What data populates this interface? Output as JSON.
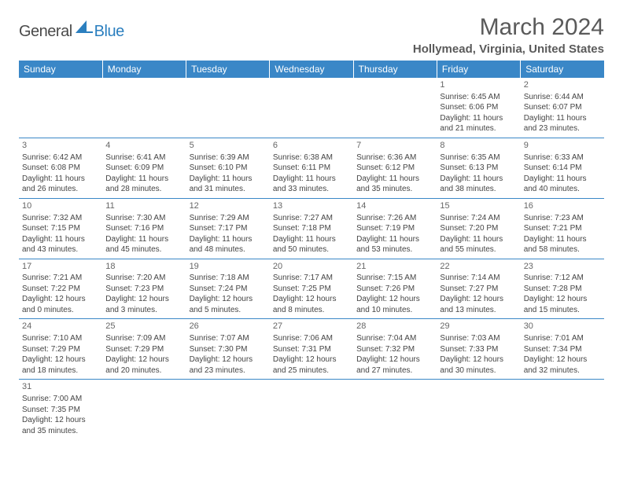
{
  "logo": {
    "text1": "General",
    "text2": "Blue"
  },
  "title": "March 2024",
  "location": "Hollymead, Virginia, United States",
  "colors": {
    "header_bg": "#3a87c7",
    "header_text": "#ffffff",
    "divider": "#3a87c7",
    "body_text": "#444444",
    "title_text": "#5a5a5a",
    "logo_blue": "#2b7fbf",
    "logo_gray": "#4a4a4a"
  },
  "fonts": {
    "title_size": 30,
    "location_size": 15,
    "th_size": 12,
    "cell_size": 10,
    "daynum_size": 11
  },
  "weekdays": [
    "Sunday",
    "Monday",
    "Tuesday",
    "Wednesday",
    "Thursday",
    "Friday",
    "Saturday"
  ],
  "weeks": [
    [
      null,
      null,
      null,
      null,
      null,
      {
        "d": "1",
        "sr": "Sunrise: 6:45 AM",
        "ss": "Sunset: 6:06 PM",
        "dl1": "Daylight: 11 hours",
        "dl2": "and 21 minutes."
      },
      {
        "d": "2",
        "sr": "Sunrise: 6:44 AM",
        "ss": "Sunset: 6:07 PM",
        "dl1": "Daylight: 11 hours",
        "dl2": "and 23 minutes."
      }
    ],
    [
      {
        "d": "3",
        "sr": "Sunrise: 6:42 AM",
        "ss": "Sunset: 6:08 PM",
        "dl1": "Daylight: 11 hours",
        "dl2": "and 26 minutes."
      },
      {
        "d": "4",
        "sr": "Sunrise: 6:41 AM",
        "ss": "Sunset: 6:09 PM",
        "dl1": "Daylight: 11 hours",
        "dl2": "and 28 minutes."
      },
      {
        "d": "5",
        "sr": "Sunrise: 6:39 AM",
        "ss": "Sunset: 6:10 PM",
        "dl1": "Daylight: 11 hours",
        "dl2": "and 31 minutes."
      },
      {
        "d": "6",
        "sr": "Sunrise: 6:38 AM",
        "ss": "Sunset: 6:11 PM",
        "dl1": "Daylight: 11 hours",
        "dl2": "and 33 minutes."
      },
      {
        "d": "7",
        "sr": "Sunrise: 6:36 AM",
        "ss": "Sunset: 6:12 PM",
        "dl1": "Daylight: 11 hours",
        "dl2": "and 35 minutes."
      },
      {
        "d": "8",
        "sr": "Sunrise: 6:35 AM",
        "ss": "Sunset: 6:13 PM",
        "dl1": "Daylight: 11 hours",
        "dl2": "and 38 minutes."
      },
      {
        "d": "9",
        "sr": "Sunrise: 6:33 AM",
        "ss": "Sunset: 6:14 PM",
        "dl1": "Daylight: 11 hours",
        "dl2": "and 40 minutes."
      }
    ],
    [
      {
        "d": "10",
        "sr": "Sunrise: 7:32 AM",
        "ss": "Sunset: 7:15 PM",
        "dl1": "Daylight: 11 hours",
        "dl2": "and 43 minutes."
      },
      {
        "d": "11",
        "sr": "Sunrise: 7:30 AM",
        "ss": "Sunset: 7:16 PM",
        "dl1": "Daylight: 11 hours",
        "dl2": "and 45 minutes."
      },
      {
        "d": "12",
        "sr": "Sunrise: 7:29 AM",
        "ss": "Sunset: 7:17 PM",
        "dl1": "Daylight: 11 hours",
        "dl2": "and 48 minutes."
      },
      {
        "d": "13",
        "sr": "Sunrise: 7:27 AM",
        "ss": "Sunset: 7:18 PM",
        "dl1": "Daylight: 11 hours",
        "dl2": "and 50 minutes."
      },
      {
        "d": "14",
        "sr": "Sunrise: 7:26 AM",
        "ss": "Sunset: 7:19 PM",
        "dl1": "Daylight: 11 hours",
        "dl2": "and 53 minutes."
      },
      {
        "d": "15",
        "sr": "Sunrise: 7:24 AM",
        "ss": "Sunset: 7:20 PM",
        "dl1": "Daylight: 11 hours",
        "dl2": "and 55 minutes."
      },
      {
        "d": "16",
        "sr": "Sunrise: 7:23 AM",
        "ss": "Sunset: 7:21 PM",
        "dl1": "Daylight: 11 hours",
        "dl2": "and 58 minutes."
      }
    ],
    [
      {
        "d": "17",
        "sr": "Sunrise: 7:21 AM",
        "ss": "Sunset: 7:22 PM",
        "dl1": "Daylight: 12 hours",
        "dl2": "and 0 minutes."
      },
      {
        "d": "18",
        "sr": "Sunrise: 7:20 AM",
        "ss": "Sunset: 7:23 PM",
        "dl1": "Daylight: 12 hours",
        "dl2": "and 3 minutes."
      },
      {
        "d": "19",
        "sr": "Sunrise: 7:18 AM",
        "ss": "Sunset: 7:24 PM",
        "dl1": "Daylight: 12 hours",
        "dl2": "and 5 minutes."
      },
      {
        "d": "20",
        "sr": "Sunrise: 7:17 AM",
        "ss": "Sunset: 7:25 PM",
        "dl1": "Daylight: 12 hours",
        "dl2": "and 8 minutes."
      },
      {
        "d": "21",
        "sr": "Sunrise: 7:15 AM",
        "ss": "Sunset: 7:26 PM",
        "dl1": "Daylight: 12 hours",
        "dl2": "and 10 minutes."
      },
      {
        "d": "22",
        "sr": "Sunrise: 7:14 AM",
        "ss": "Sunset: 7:27 PM",
        "dl1": "Daylight: 12 hours",
        "dl2": "and 13 minutes."
      },
      {
        "d": "23",
        "sr": "Sunrise: 7:12 AM",
        "ss": "Sunset: 7:28 PM",
        "dl1": "Daylight: 12 hours",
        "dl2": "and 15 minutes."
      }
    ],
    [
      {
        "d": "24",
        "sr": "Sunrise: 7:10 AM",
        "ss": "Sunset: 7:29 PM",
        "dl1": "Daylight: 12 hours",
        "dl2": "and 18 minutes."
      },
      {
        "d": "25",
        "sr": "Sunrise: 7:09 AM",
        "ss": "Sunset: 7:29 PM",
        "dl1": "Daylight: 12 hours",
        "dl2": "and 20 minutes."
      },
      {
        "d": "26",
        "sr": "Sunrise: 7:07 AM",
        "ss": "Sunset: 7:30 PM",
        "dl1": "Daylight: 12 hours",
        "dl2": "and 23 minutes."
      },
      {
        "d": "27",
        "sr": "Sunrise: 7:06 AM",
        "ss": "Sunset: 7:31 PM",
        "dl1": "Daylight: 12 hours",
        "dl2": "and 25 minutes."
      },
      {
        "d": "28",
        "sr": "Sunrise: 7:04 AM",
        "ss": "Sunset: 7:32 PM",
        "dl1": "Daylight: 12 hours",
        "dl2": "and 27 minutes."
      },
      {
        "d": "29",
        "sr": "Sunrise: 7:03 AM",
        "ss": "Sunset: 7:33 PM",
        "dl1": "Daylight: 12 hours",
        "dl2": "and 30 minutes."
      },
      {
        "d": "30",
        "sr": "Sunrise: 7:01 AM",
        "ss": "Sunset: 7:34 PM",
        "dl1": "Daylight: 12 hours",
        "dl2": "and 32 minutes."
      }
    ],
    [
      {
        "d": "31",
        "sr": "Sunrise: 7:00 AM",
        "ss": "Sunset: 7:35 PM",
        "dl1": "Daylight: 12 hours",
        "dl2": "and 35 minutes."
      },
      null,
      null,
      null,
      null,
      null,
      null
    ]
  ]
}
